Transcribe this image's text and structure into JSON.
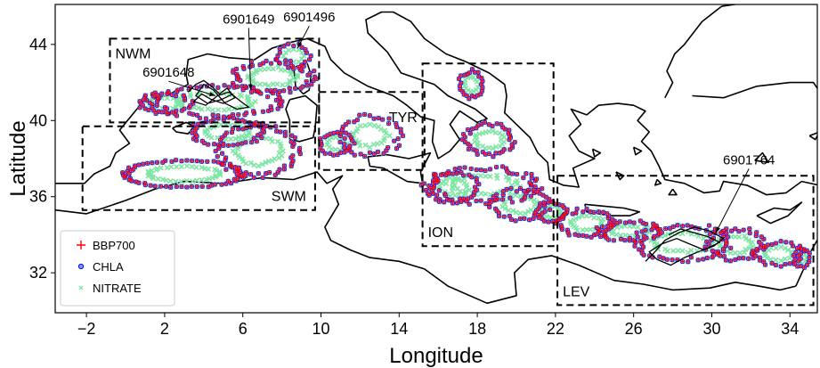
{
  "chart_data": {
    "type": "scatter",
    "title": "",
    "xlabel": "Longitude",
    "ylabel": "Latitude",
    "xlim": [
      -3.6,
      35.4
    ],
    "ylim": [
      29.9,
      46.1
    ],
    "xticks": [
      -2,
      2,
      6,
      10,
      14,
      18,
      22,
      26,
      30,
      34
    ],
    "xtick_labels": [
      "−2",
      "2",
      "6",
      "10",
      "14",
      "18",
      "22",
      "26",
      "30",
      "34"
    ],
    "yticks": [
      32,
      36,
      40,
      44
    ],
    "ytick_labels": [
      "32",
      "36",
      "40",
      "44"
    ],
    "grid": false,
    "legend": {
      "position": "bottom-left",
      "entries": [
        {
          "label": "BBP700",
          "marker": "+",
          "color": "#ff0000"
        },
        {
          "label": "CHLA",
          "marker": "o",
          "color": "#0000ff"
        },
        {
          "label": "NITRATE",
          "marker": "x",
          "color": "#7fe6a5"
        }
      ]
    },
    "regions": [
      {
        "label": "NWM",
        "lon": [
          -0.8,
          9.9
        ],
        "lat": [
          39.9,
          44.3
        ]
      },
      {
        "label": "SWM",
        "lon": [
          -2.2,
          9.7
        ],
        "lat": [
          35.3,
          39.7
        ]
      },
      {
        "label": "TYR",
        "lon": [
          9.9,
          15.3
        ],
        "lat": [
          37.4,
          41.5
        ]
      },
      {
        "label": "ION",
        "lon": [
          15.2,
          21.9
        ],
        "lat": [
          33.4,
          43.0
        ]
      },
      {
        "label": "LEV",
        "lon": [
          22.1,
          35.2
        ],
        "lat": [
          30.3,
          37.1
        ]
      }
    ],
    "float_annotations": [
      {
        "label": "6901649",
        "text_lon": 6.3,
        "text_lat": 45.1,
        "arrow_lon": 6.4,
        "arrow_lat": 41.6
      },
      {
        "label": "6901496",
        "text_lon": 9.4,
        "text_lat": 45.2,
        "arrow_lon": 8.8,
        "arrow_lat": 43.8
      },
      {
        "label": "6901648",
        "text_lon": 2.2,
        "text_lat": 42.3,
        "arrow_lon": 4.6,
        "arrow_lat": 41.3
      },
      {
        "label": "6901764",
        "text_lon": 31.9,
        "text_lat": 37.7,
        "arrow_lon": 30.2,
        "arrow_lat": 34.1
      }
    ],
    "series": [
      {
        "name": "BBP700",
        "color": "#ff0000",
        "marker": "+"
      },
      {
        "name": "CHLA",
        "color": "#0000ff",
        "marker": "o"
      },
      {
        "name": "NITRATE",
        "color": "#7fe6a5",
        "marker": "x"
      }
    ],
    "float_tracks": [
      {
        "float": "6901648",
        "lon": [
          3.2,
          3.6,
          4.0,
          4.4,
          4.8,
          5.2,
          5.6,
          5.0,
          4.4,
          3.9,
          3.5,
          4.1,
          4.7,
          5.3,
          5.9,
          6.3,
          5.7,
          5.1,
          4.5,
          4.0,
          3.6,
          4.2,
          4.9,
          5.5
        ]
      },
      {
        "float": "6901648",
        "lat": [
          41.5,
          41.9,
          42.1,
          41.8,
          41.4,
          41.7,
          41.2,
          40.9,
          41.1,
          41.4,
          41.0,
          40.8,
          41.3,
          41.5,
          41.0,
          40.7,
          40.6,
          40.9,
          41.6,
          41.9,
          41.3,
          40.9,
          41.1,
          41.4
        ]
      },
      {
        "float": "6901764",
        "lon": [
          27.8,
          28.4,
          29.1,
          29.8,
          30.4,
          29.6,
          28.9,
          28.2,
          27.4,
          26.8,
          27.2,
          27.9,
          28.6,
          29.3,
          30.1,
          30.6,
          29.9,
          29.1,
          28.3,
          27.6,
          27.0,
          26.6
        ]
      },
      {
        "float": "6901764",
        "lat": [
          34.0,
          34.3,
          34.1,
          33.9,
          33.6,
          33.2,
          33.5,
          33.8,
          33.5,
          33.1,
          32.7,
          32.4,
          32.8,
          33.1,
          33.4,
          33.8,
          34.2,
          34.4,
          34.1,
          33.7,
          33.0,
          32.6
        ]
      }
    ]
  }
}
